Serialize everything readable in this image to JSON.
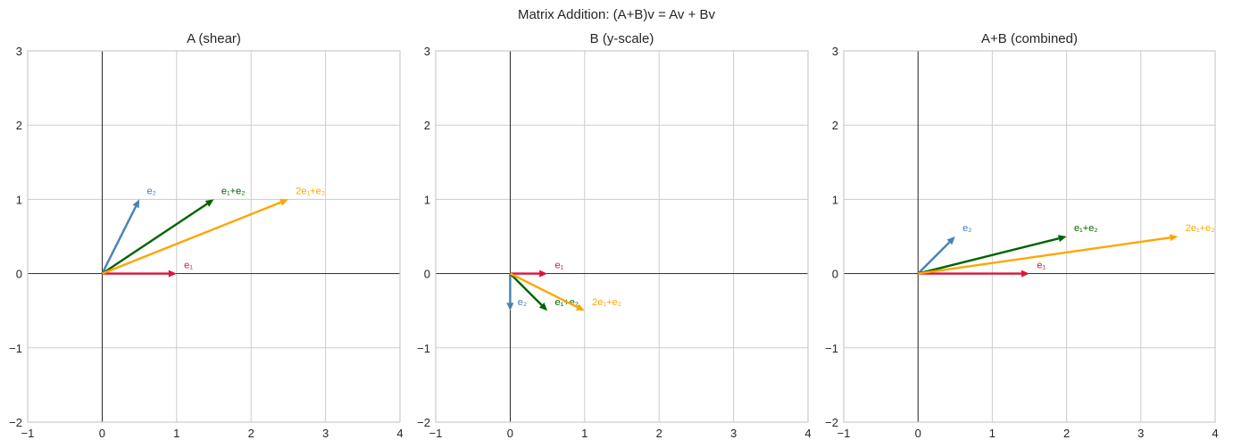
{
  "suptitle": "Matrix Addition: (A+B)v = Av + Bv",
  "chart_data": [
    {
      "type": "quiver",
      "title": "A (shear)",
      "xlim": [
        -1,
        4
      ],
      "ylim": [
        -2,
        3
      ],
      "xticks": [
        "−1",
        "0",
        "1",
        "2",
        "3",
        "4"
      ],
      "yticks": [
        "−2",
        "−1",
        "0",
        "1",
        "2",
        "3"
      ],
      "grid": true,
      "vectors": [
        {
          "label": "e₁",
          "x": 1,
          "y": 0,
          "color": "#dc143c"
        },
        {
          "label": "e₂",
          "x": 0.5,
          "y": 1,
          "color": "#4682b4"
        },
        {
          "label": "e₁+e₂",
          "x": 1.5,
          "y": 1,
          "color": "#006400"
        },
        {
          "label": "2e₁+e₂",
          "x": 2.5,
          "y": 1,
          "color": "#ffa500"
        }
      ]
    },
    {
      "type": "quiver",
      "title": "B (y-scale)",
      "xlim": [
        -1,
        4
      ],
      "ylim": [
        -2,
        3
      ],
      "xticks": [
        "−1",
        "0",
        "1",
        "2",
        "3",
        "4"
      ],
      "yticks": [
        "−2",
        "−1",
        "0",
        "1",
        "2",
        "3"
      ],
      "grid": true,
      "vectors": [
        {
          "label": "e₁",
          "x": 0.5,
          "y": 0,
          "color": "#dc143c"
        },
        {
          "label": "e₂",
          "x": 0,
          "y": -0.5,
          "color": "#4682b4"
        },
        {
          "label": "e₁+e₂",
          "x": 0.5,
          "y": -0.5,
          "color": "#006400"
        },
        {
          "label": "2e₁+e₂",
          "x": 1,
          "y": -0.5,
          "color": "#ffa500"
        }
      ]
    },
    {
      "type": "quiver",
      "title": "A+B (combined)",
      "xlim": [
        -1,
        4
      ],
      "ylim": [
        -2,
        3
      ],
      "xticks": [
        "−1",
        "0",
        "1",
        "2",
        "3",
        "4"
      ],
      "yticks": [
        "−2",
        "−1",
        "0",
        "1",
        "2",
        "3"
      ],
      "grid": true,
      "vectors": [
        {
          "label": "e₁",
          "x": 1.5,
          "y": 0,
          "color": "#dc143c"
        },
        {
          "label": "e₂",
          "x": 0.5,
          "y": 0.5,
          "color": "#4682b4"
        },
        {
          "label": "e₁+e₂",
          "x": 2,
          "y": 0.5,
          "color": "#006400"
        },
        {
          "label": "2e₁+e₂",
          "x": 3.5,
          "y": 0.5,
          "color": "#ffa500"
        }
      ]
    }
  ]
}
